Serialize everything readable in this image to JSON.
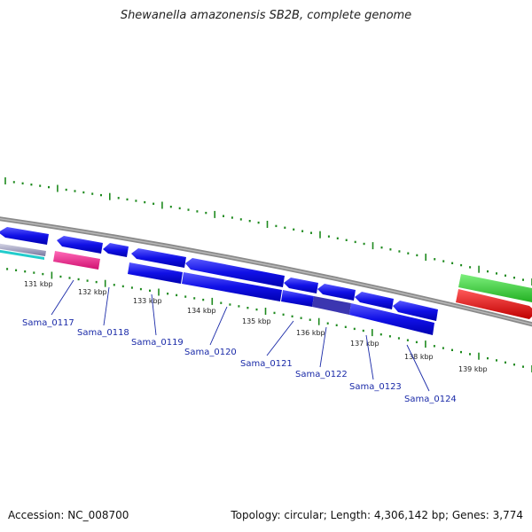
{
  "title": "Shewanella amazonensis SB2B, complete genome",
  "footer": {
    "accession": "Accession: NC_008700",
    "summary": "Topology: circular; Length: 4,306,142 bp; Genes: 3,774"
  },
  "colors": {
    "cds": "#1010e6",
    "cds_dark": "#3a3ad0",
    "rna": "#ee2288",
    "dotted": "#1e8a1e",
    "backbone": "#8a8a8a",
    "label": "#1a2aa8",
    "green_feature": "#33cc33",
    "red_feature": "#ee1111",
    "cyan_feature": "#22cccc"
  },
  "scale": {
    "ticks": [
      {
        "kbp": 131,
        "label": "131 kbp"
      },
      {
        "kbp": 132,
        "label": "132 kbp"
      },
      {
        "kbp": 133,
        "label": "133 kbp"
      },
      {
        "kbp": 134,
        "label": "134 kbp"
      },
      {
        "kbp": 135,
        "label": "135 kbp"
      },
      {
        "kbp": 136,
        "label": "136 kbp"
      },
      {
        "kbp": 137,
        "label": "137 kbp"
      },
      {
        "kbp": 138,
        "label": "138 kbp"
      },
      {
        "kbp": 139,
        "label": "139 kbp"
      }
    ]
  },
  "genes": [
    {
      "locus": "Sama_0117",
      "start_kbp": 130.55,
      "end_kbp": 131.5
    },
    {
      "locus": "Sama_0118",
      "start_kbp": 131.55,
      "end_kbp": 132.4
    },
    {
      "locus": "Sama_0119",
      "start_kbp": 132.45,
      "end_kbp": 133.42
    },
    {
      "locus": "Sama_0120",
      "start_kbp": 133.45,
      "end_kbp": 135.3
    },
    {
      "locus": "Sama_0121",
      "start_kbp": 135.35,
      "end_kbp": 135.95
    },
    {
      "locus": "Sama_0122",
      "start_kbp": 136.0,
      "end_kbp": 136.7
    },
    {
      "locus": "Sama_0123",
      "start_kbp": 136.75,
      "end_kbp": 137.45
    },
    {
      "locus": "Sama_0124",
      "start_kbp": 137.5,
      "end_kbp": 138.3
    }
  ]
}
